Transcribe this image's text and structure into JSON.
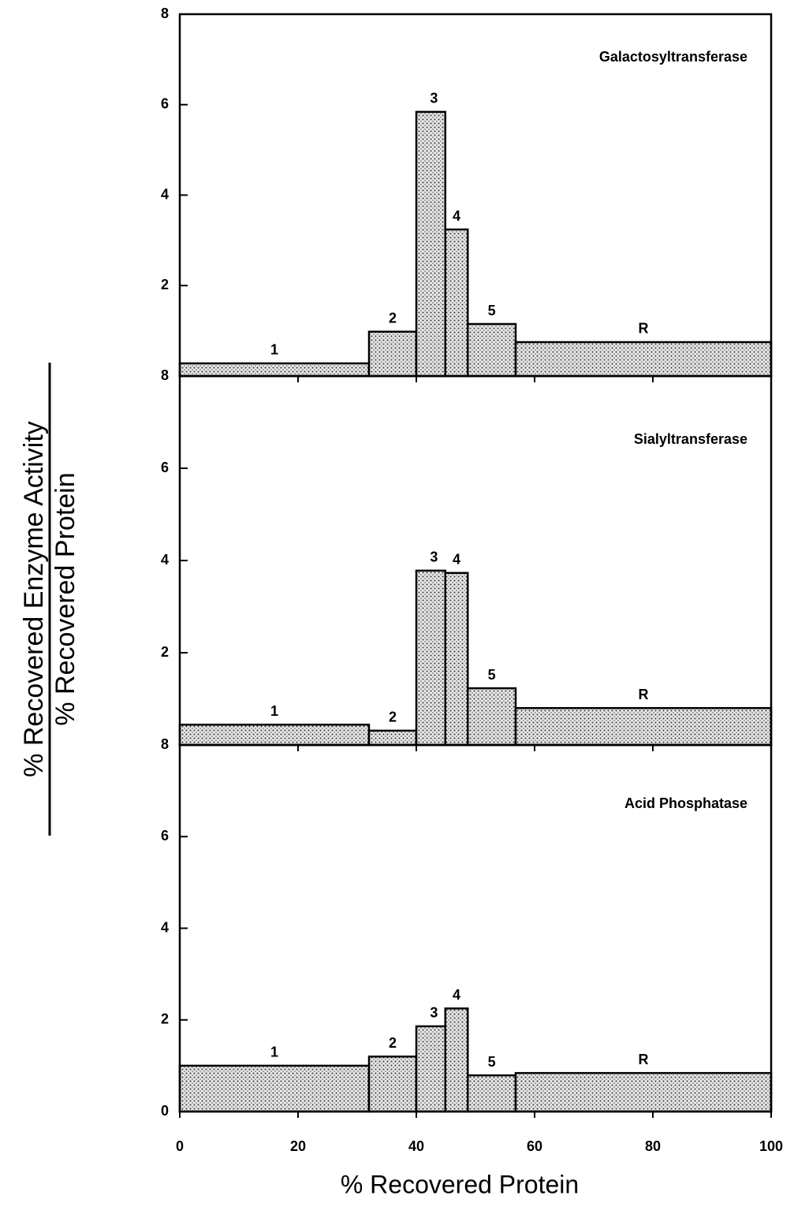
{
  "ylabel": "% Recovered Enzyme Activity",
  "ylabel_denominator": "% Recovered Protein",
  "chart_data": [
    {
      "type": "histogram",
      "title": "Galactosyltransferase",
      "bins": [
        0,
        32,
        40,
        44.9,
        48.7,
        56.8,
        100
      ],
      "categories": [
        "1",
        "2",
        "3",
        "4",
        "5",
        "R"
      ],
      "values": [
        0.28,
        0.98,
        5.84,
        3.24,
        1.15,
        0.75
      ],
      "xlim": [
        0,
        100
      ],
      "ylim": [
        0,
        8
      ],
      "yticks": [
        2,
        4,
        6,
        8
      ],
      "color": "#000000"
    },
    {
      "type": "histogram",
      "title": "Sialyltransferase",
      "bins": [
        0,
        32,
        40,
        44.9,
        48.7,
        56.8,
        100
      ],
      "categories": [
        "1",
        "2",
        "3",
        "4",
        "5",
        "R"
      ],
      "values": [
        0.44,
        0.31,
        3.78,
        3.73,
        1.23,
        0.8
      ],
      "xlim": [
        0,
        100
      ],
      "ylim": [
        0,
        8
      ],
      "yticks": [
        2,
        4,
        6,
        8
      ],
      "color": "#000000"
    },
    {
      "type": "histogram",
      "title": "Acid Phosphatase",
      "bins": [
        0,
        32,
        40,
        44.9,
        48.7,
        56.8,
        100
      ],
      "categories": [
        "1",
        "2",
        "3",
        "4",
        "5",
        "R"
      ],
      "values": [
        1.0,
        1.2,
        1.86,
        2.25,
        0.79,
        0.84
      ],
      "xlim": [
        0,
        100
      ],
      "ylim": [
        0,
        8
      ],
      "yticks": [
        0,
        2,
        4,
        6,
        8
      ],
      "xticks": [
        0,
        20,
        40,
        60,
        80,
        100
      ],
      "xlabel": "% Recovered Protein",
      "color": "#000000"
    }
  ]
}
